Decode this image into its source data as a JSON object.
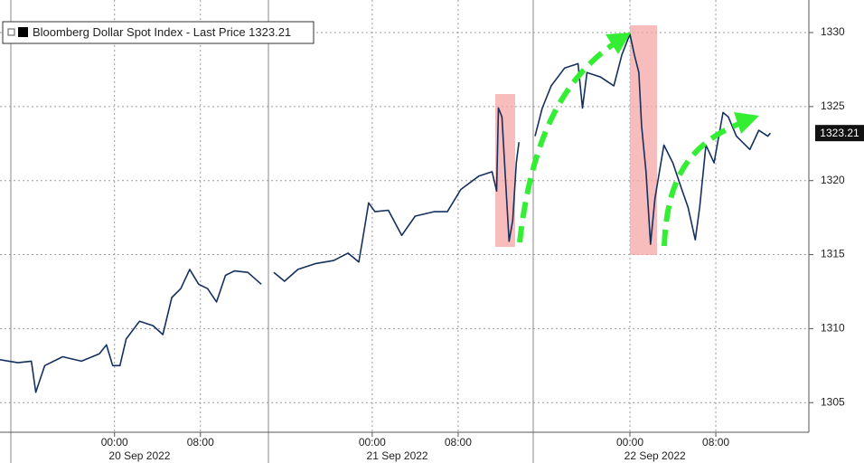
{
  "chart_data": {
    "type": "line",
    "xlim": [
      "2022-09-19T13:20",
      "2022-09-22T16:40"
    ],
    "ylim": [
      1303,
      1332.2
    ],
    "yticks": [
      1305,
      1310,
      1315,
      1320,
      1325,
      1330
    ],
    "xticks": [
      {
        "value": "2022-09-20T00:00",
        "label": "00:00"
      },
      {
        "value": "2022-09-20T08:00",
        "label": "08:00"
      },
      {
        "value": "2022-09-21T00:00",
        "label": "00:00"
      },
      {
        "value": "2022-09-21T08:00",
        "label": "08:00"
      },
      {
        "value": "2022-09-22T00:00",
        "label": "00:00"
      },
      {
        "value": "2022-09-22T08:00",
        "label": "08:00"
      }
    ],
    "date_labels": [
      {
        "value": "2022-09-20T02:20",
        "label": "20 Sep 2022"
      },
      {
        "value": "2022-09-21T02:20",
        "label": "21 Sep 2022"
      },
      {
        "value": "2022-09-22T02:20",
        "label": "22 Sep 2022"
      }
    ],
    "grid": true,
    "last_value": 1323.21,
    "x": [
      "2022-09-19T13:20",
      "2022-09-19T15:00",
      "2022-09-19T16:15",
      "2022-09-19T16:40",
      "2022-09-19T17:30",
      "2022-09-19T19:10",
      "2022-09-19T20:55",
      "2022-09-19T22:35",
      "2022-09-19T23:15",
      "2022-09-19T23:50",
      "2022-09-20T00:30",
      "2022-09-20T01:05",
      "2022-09-20T02:20",
      "2022-09-20T03:35",
      "2022-09-20T04:30",
      "2022-09-20T05:20",
      "2022-09-20T06:10",
      "2022-09-20T07:00",
      "2022-09-20T07:50",
      "2022-09-20T08:40",
      "2022-09-20T09:30",
      "2022-09-20T10:20",
      "2022-09-20T11:10",
      "2022-09-20T12:25",
      "2022-09-20T13:40",
      "2022-09-20T14:15",
      "2022-09-20T14:50",
      "2022-09-20T15:50",
      "2022-09-20T17:05",
      "2022-09-20T18:45",
      "2022-09-20T20:25",
      "2022-09-20T21:45",
      "2022-09-20T22:45",
      "2022-09-20T23:10",
      "2022-09-20T23:40",
      "2022-09-21T00:15",
      "2022-09-21T01:30",
      "2022-09-21T02:45",
      "2022-09-21T04:00",
      "2022-09-21T05:45",
      "2022-09-21T07:00",
      "2022-09-21T08:15",
      "2022-09-21T09:55",
      "2022-09-21T11:10",
      "2022-09-21T11:35",
      "2022-09-21T11:45",
      "2022-09-21T12:05",
      "2022-09-21T12:25",
      "2022-09-21T12:45",
      "2022-09-21T13:05",
      "2022-09-21T13:25",
      "2022-09-21T13:40",
      "2022-09-21T14:25",
      "2022-09-21T15:10",
      "2022-09-21T15:50",
      "2022-09-21T16:40",
      "2022-09-21T17:55",
      "2022-09-21T19:10",
      "2022-09-21T19:35",
      "2022-09-21T20:00",
      "2022-09-21T21:15",
      "2022-09-21T22:30",
      "2022-09-21T23:15",
      "2022-09-22T00:00",
      "2022-09-22T00:25",
      "2022-09-22T00:50",
      "2022-09-22T01:05",
      "2022-09-22T01:30",
      "2022-09-22T01:55",
      "2022-09-22T02:20",
      "2022-09-22T03:10",
      "2022-09-22T04:00",
      "2022-09-22T04:50",
      "2022-09-22T05:25",
      "2022-09-22T06:05",
      "2022-09-22T06:30",
      "2022-09-22T07:05",
      "2022-09-22T07:50",
      "2022-09-22T08:40",
      "2022-09-22T09:10",
      "2022-09-22T09:55",
      "2022-09-22T11:10",
      "2022-09-22T12:00",
      "2022-09-22T12:50",
      "2022-09-22T13:05"
    ],
    "series": [
      {
        "name": "Bloomberg Dollar Spot Index - Last Price 1323.21",
        "color": "#14305f",
        "values": [
          1307.9,
          1307.7,
          1307.8,
          1305.7,
          1307.5,
          1308.1,
          1307.8,
          1308.3,
          1308.9,
          1307.5,
          1307.5,
          1309.3,
          1310.5,
          1310.2,
          1309.6,
          1312.1,
          1312.7,
          1314.0,
          1313.0,
          1312.7,
          1311.8,
          1313.6,
          1313.9,
          1313.8,
          1313.0,
          null,
          1313.8,
          1313.2,
          1314.0,
          1314.4,
          1314.6,
          1315.1,
          1314.5,
          1316.3,
          1318.5,
          1317.9,
          1318.0,
          1316.3,
          1317.6,
          1317.9,
          1317.9,
          1319.4,
          1320.3,
          1320.6,
          1319.3,
          1324.9,
          1324.3,
          1320.0,
          1315.9,
          1317.3,
          1321.2,
          1322.6,
          null,
          1323.0,
          1324.9,
          1326.4,
          1327.6,
          1327.9,
          1324.9,
          1327.3,
          1327.0,
          1326.4,
          1328.5,
          1329.9,
          1328.5,
          1327.3,
          1323.7,
          1320.6,
          1315.7,
          1318.8,
          1322.4,
          1321.2,
          1319.4,
          1318.2,
          1316.0,
          1318.2,
          1322.4,
          1321.2,
          1324.6,
          1324.3,
          1323.0,
          1322.1,
          1323.4,
          1323.0,
          1323.21
        ]
      }
    ]
  }
}
